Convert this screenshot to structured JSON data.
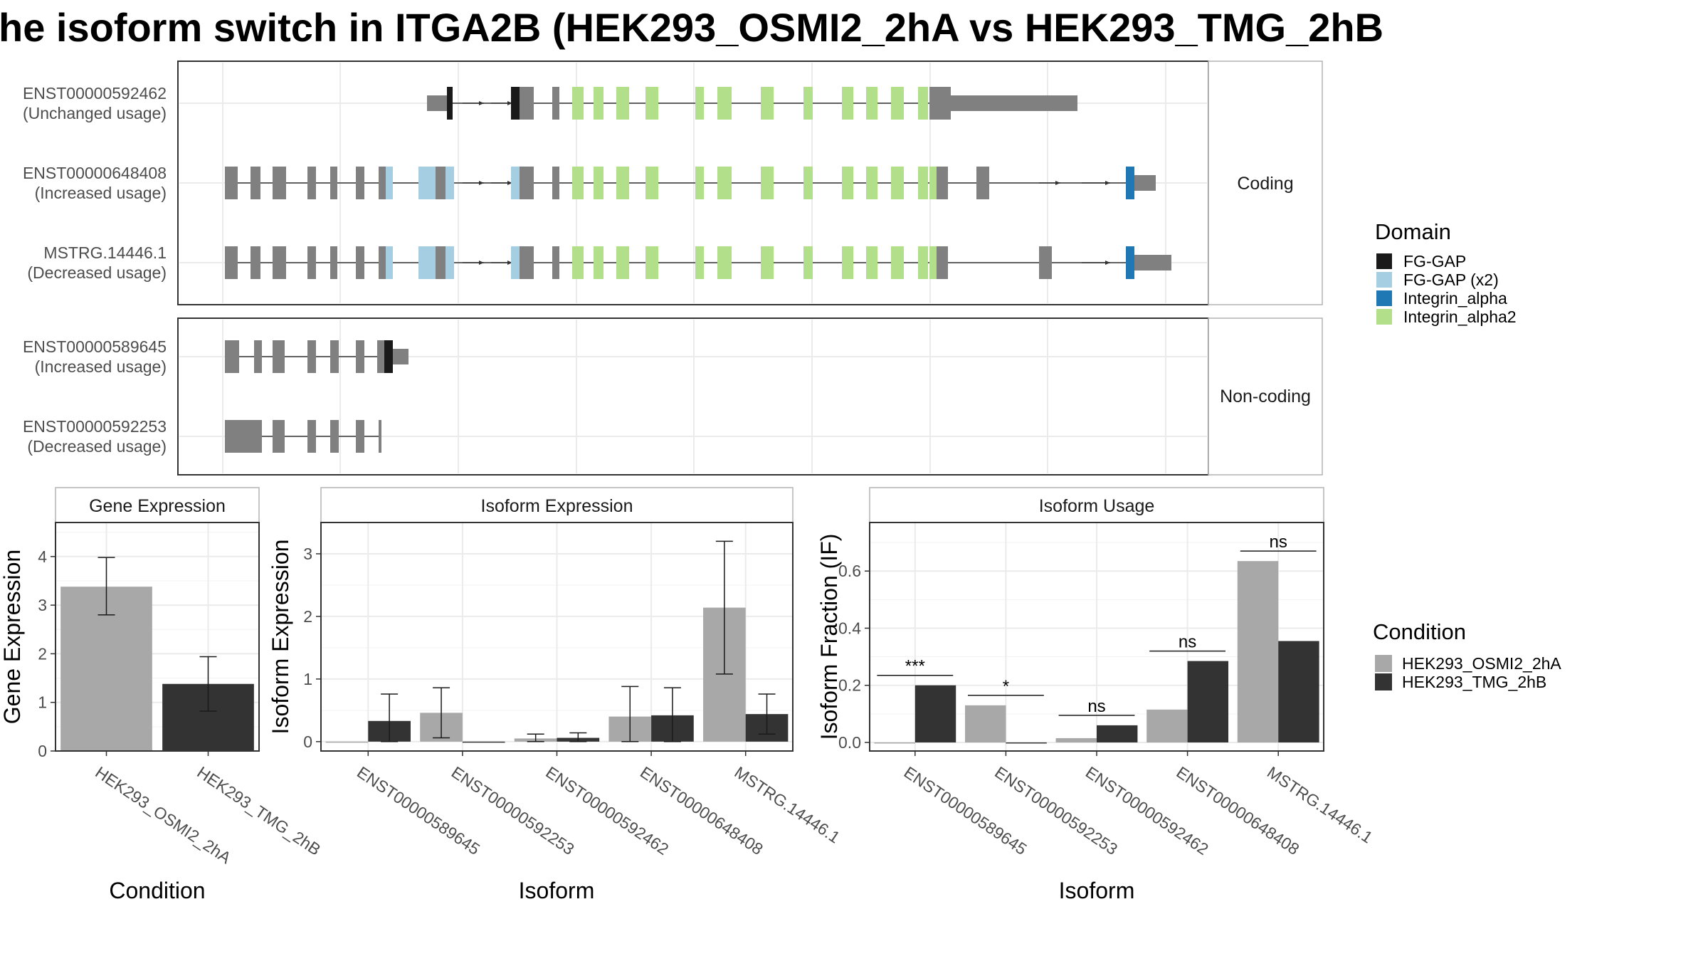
{
  "title": "he isoform switch in ITGA2B (HEK293_OSMI2_2hA vs HEK293_TMG_2hB",
  "colors": {
    "exon": "#808080",
    "FG-GAP": "#1a1a1a",
    "FG-GAP (x2)": "#a6cee3",
    "Integrin_alpha": "#1f78b4",
    "Integrin_alpha2": "#b2df8a",
    "condA": "#a8a8a8",
    "condB": "#333333"
  },
  "structure": {
    "coding_label": "Coding",
    "noncoding_label": "Non-coding",
    "domain_legend_title": "Domain",
    "domains": [
      "FG-GAP",
      "FG-GAP (x2)",
      "Integrin_alpha",
      "Integrin_alpha2"
    ],
    "transcripts": [
      {
        "id": "ENST00000592462",
        "usage": "(Unchanged usage)",
        "group": "coding"
      },
      {
        "id": "ENST00000648408",
        "usage": "(Increased usage)",
        "group": "coding"
      },
      {
        "id": "MSTRG.14446.1",
        "usage": "(Decreased usage)",
        "group": "coding"
      },
      {
        "id": "ENST00000589645",
        "usage": "(Increased usage)",
        "group": "noncoding"
      },
      {
        "id": "ENST00000592253",
        "usage": "(Decreased usage)",
        "group": "noncoding"
      }
    ]
  },
  "condition_legend": {
    "title": "Condition",
    "items": [
      "HEK293_OSMI2_2hA",
      "HEK293_TMG_2hB"
    ]
  },
  "chart_data": [
    {
      "type": "bar",
      "title": "Gene Expression",
      "xlabel": "Condition",
      "ylabel": "Gene Expression",
      "categories": [
        "HEK293_OSMI2_2hA",
        "HEK293_TMG_2hB"
      ],
      "values": [
        3.38,
        1.38
      ],
      "error_low": [
        2.8,
        0.82
      ],
      "error_high": [
        3.98,
        1.94
      ],
      "ylim": [
        0,
        4.7
      ],
      "yticks": [
        0,
        1,
        2,
        3,
        4
      ]
    },
    {
      "type": "bar",
      "title": "Isoform Expression",
      "xlabel": "Isoform",
      "ylabel": "Isoform Expression",
      "categories": [
        "ENST00000589645",
        "ENST00000592253",
        "ENST00000592462",
        "ENST00000648408",
        "MSTRG.14446.1"
      ],
      "series": [
        {
          "name": "HEK293_OSMI2_2hA",
          "values": [
            0,
            0.46,
            0.05,
            0.4,
            2.14
          ],
          "error_low": [
            0,
            0.06,
            0.0,
            0.0,
            1.08
          ],
          "error_high": [
            0,
            0.86,
            0.12,
            0.88,
            3.2
          ]
        },
        {
          "name": "HEK293_TMG_2hB",
          "values": [
            0.33,
            0,
            0.06,
            0.42,
            0.44
          ],
          "error_low": [
            0.0,
            0,
            0.0,
            0.0,
            0.12
          ],
          "error_high": [
            0.76,
            0,
            0.14,
            0.86,
            0.76
          ]
        }
      ],
      "ylim": [
        -0.15,
        3.5
      ],
      "yticks": [
        0,
        1,
        2,
        3
      ]
    },
    {
      "type": "bar",
      "title": "Isoform Usage",
      "xlabel": "Isoform",
      "ylabel": "Isoform Fraction (IF)",
      "categories": [
        "ENST00000589645",
        "ENST00000592253",
        "ENST00000592462",
        "ENST00000648408",
        "MSTRG.14446.1"
      ],
      "series": [
        {
          "name": "HEK293_OSMI2_2hA",
          "values": [
            0,
            0.13,
            0.015,
            0.115,
            0.635
          ]
        },
        {
          "name": "HEK293_TMG_2hB",
          "values": [
            0.2,
            0,
            0.06,
            0.285,
            0.355
          ]
        }
      ],
      "significance": [
        "***",
        "*",
        "ns",
        "ns",
        "ns"
      ],
      "ylim": [
        -0.03,
        0.77
      ],
      "yticks": [
        0.0,
        0.2,
        0.4,
        0.6
      ]
    }
  ]
}
